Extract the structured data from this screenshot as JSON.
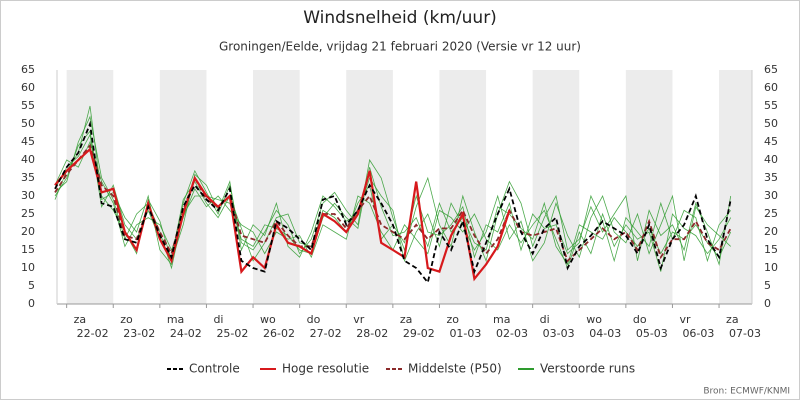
{
  "chart_data": {
    "type": "line",
    "title": "Windsnelheid (km/uur)",
    "subtitle": "Groningen/Eelde, vrijdag 21 februari 2020 (Versie vr 12 uur)",
    "source": "Bron: ECMWF/KNMI",
    "categories": [
      null,
      "22-02",
      null,
      null,
      null,
      "23-02",
      null,
      null,
      null,
      "24-02",
      null,
      null,
      null,
      "25-02",
      null,
      null,
      null,
      "26-02",
      null,
      null,
      null,
      "27-02",
      null,
      null,
      null,
      "28-02",
      null,
      null,
      null,
      "29-02",
      null,
      null,
      null,
      "01-03",
      null,
      null,
      null,
      "02-03",
      null,
      null,
      null,
      "03-03",
      null,
      null,
      null,
      "04-03",
      null,
      null,
      null,
      "05-03",
      null,
      null,
      null,
      "06-03",
      null,
      null,
      null,
      "07-03",
      null
    ],
    "weekdays": [
      null,
      "za",
      null,
      null,
      null,
      "zo",
      null,
      null,
      null,
      "ma",
      null,
      null,
      null,
      "di",
      null,
      null,
      null,
      "wo",
      null,
      null,
      null,
      "do",
      null,
      null,
      null,
      "vr",
      null,
      null,
      null,
      "za",
      null,
      null,
      null,
      "zo",
      null,
      null,
      null,
      "ma",
      null,
      null,
      null,
      "di",
      null,
      null,
      null,
      "wo",
      null,
      null,
      null,
      "do",
      null,
      null,
      null,
      "vr",
      null,
      null,
      null,
      "za",
      null
    ],
    "ylim": [
      0,
      65
    ],
    "yticks": [
      0,
      5,
      10,
      15,
      20,
      25,
      30,
      35,
      40,
      45,
      50,
      55,
      60,
      65
    ],
    "grid": false,
    "legend": "bottom",
    "ensemble": {
      "name": "Verstoorde runs",
      "color": "#2e9b2e",
      "members": [
        [
          30,
          35,
          44,
          48,
          29,
          31,
          24,
          20,
          30,
          15,
          11,
          28,
          37,
          31,
          25,
          33,
          17,
          15,
          20,
          26,
          22,
          14,
          18,
          28,
          31,
          26,
          22,
          40,
          35,
          24,
          15,
          27,
          35,
          22,
          16,
          30,
          20,
          12,
          25,
          34,
          28,
          16,
          24,
          30,
          15,
          18,
          27,
          20,
          25,
          30,
          12,
          26,
          19,
          22,
          15,
          28,
          20,
          11,
          30
        ],
        [
          33,
          40,
          38,
          45,
          34,
          28,
          16,
          22,
          24,
          22,
          15,
          24,
          32,
          27,
          30,
          26,
          22,
          20,
          14,
          20,
          18,
          19,
          13,
          22,
          20,
          18,
          30,
          28,
          20,
          15,
          22,
          18,
          14,
          26,
          24,
          20,
          25,
          18,
          15,
          22,
          17,
          22,
          26,
          18,
          10,
          20,
          14,
          25,
          16,
          22,
          18,
          20,
          9,
          25,
          21,
          19,
          14,
          18,
          24
        ],
        [
          29,
          37,
          42,
          55,
          30,
          26,
          20,
          14,
          29,
          23,
          12,
          22,
          36,
          33,
          26,
          34,
          15,
          22,
          19,
          28,
          16,
          13,
          20,
          30,
          27,
          23,
          25,
          35,
          30,
          26,
          12,
          20,
          25,
          16,
          28,
          22,
          15,
          20,
          30,
          18,
          23,
          12,
          17,
          28,
          19,
          13,
          24,
          30,
          20,
          17,
          25,
          14,
          22,
          30,
          12,
          27,
          22,
          19,
          16
        ],
        [
          32,
          38,
          41,
          47,
          27,
          33,
          22,
          18,
          26,
          18,
          13,
          29,
          34,
          28,
          24,
          30,
          21,
          12,
          17,
          24,
          25,
          17,
          16,
          26,
          24,
          20,
          28,
          33,
          18,
          22,
          17,
          30,
          20,
          19,
          22,
          27,
          13,
          22,
          20,
          28,
          15,
          25,
          21,
          22,
          14,
          17,
          30,
          23,
          12,
          24,
          20,
          16,
          28,
          18,
          26,
          24,
          12,
          22,
          26
        ],
        [
          31,
          34,
          45,
          52,
          35,
          29,
          18,
          25,
          28,
          20,
          10,
          25,
          30,
          30,
          29,
          28,
          18,
          16,
          22,
          21,
          19,
          15,
          14,
          24,
          28,
          24,
          21,
          38,
          27,
          19,
          20,
          24,
          16,
          28,
          20,
          24,
          17,
          15,
          27,
          25,
          21,
          18,
          28,
          16,
          11,
          22,
          20,
          18,
          24,
          20,
          16,
          21,
          14,
          20,
          18,
          22,
          17,
          13,
          20
        ]
      ]
    },
    "series": [
      {
        "name": "Controle",
        "color": "#000000",
        "style": "dashed",
        "values": [
          32,
          38,
          42,
          50,
          28,
          27,
          18,
          17,
          27,
          19,
          13,
          27,
          33,
          29,
          26,
          32,
          12,
          10,
          9,
          23,
          21,
          18,
          15,
          29,
          30,
          22,
          26,
          33,
          28,
          22,
          12,
          10,
          6,
          20,
          15,
          23,
          9,
          17,
          25,
          32,
          20,
          14,
          21,
          24,
          10,
          16,
          19,
          23,
          21,
          19,
          14,
          22,
          10,
          18,
          22,
          30,
          18,
          13,
          29
        ]
      },
      {
        "name": "Hoge resolutie",
        "color": "#d7191c",
        "style": "solid",
        "values": [
          33,
          37,
          40,
          43,
          31,
          32,
          20,
          15,
          28,
          18,
          12,
          25,
          35,
          30,
          27,
          30,
          9,
          13,
          10,
          22,
          17,
          16,
          14,
          25,
          23,
          20,
          25,
          37,
          17,
          15,
          13,
          34,
          10,
          9,
          19,
          25,
          7,
          11,
          16,
          26,
          null,
          null,
          null,
          null,
          null,
          null,
          null,
          null,
          null,
          null,
          null,
          null,
          null,
          null,
          null,
          null,
          null,
          null,
          null
        ]
      },
      {
        "name": "Middelste (P50)",
        "color": "#8b2a2a",
        "style": "dashed",
        "values": [
          31,
          36,
          40,
          44,
          33,
          30,
          19,
          18,
          27,
          20,
          14,
          26,
          35,
          29,
          27,
          30,
          19,
          18,
          17,
          23,
          19,
          16,
          16,
          25,
          25,
          21,
          26,
          30,
          22,
          20,
          18,
          22,
          18,
          21,
          21,
          26,
          19,
          14,
          18,
          26,
          20,
          19,
          20,
          21,
          12,
          15,
          18,
          21,
          18,
          20,
          15,
          23,
          13,
          18,
          18,
          23,
          17,
          15,
          21
        ]
      }
    ]
  }
}
